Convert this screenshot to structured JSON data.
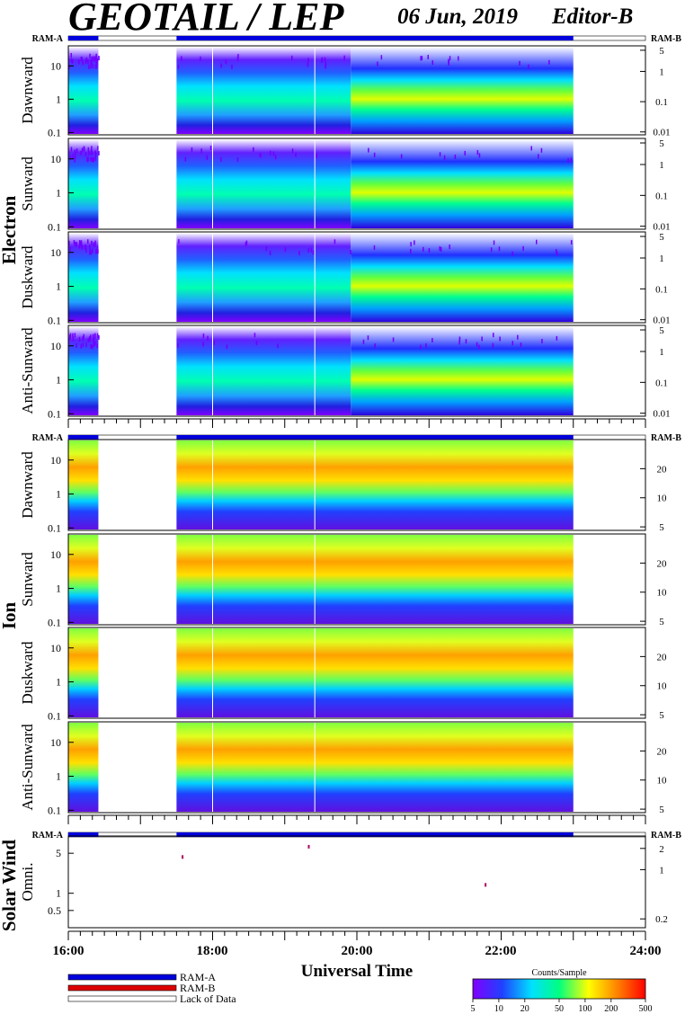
{
  "header": {
    "title": "GEOTAIL / LEP",
    "date": "06 Jun, 2019",
    "editor": "Editor-B"
  },
  "groups": [
    "Electron",
    "Ion",
    "Solar Wind"
  ],
  "ram_labels": {
    "a": "RAM-A",
    "b": "RAM-B"
  },
  "x_axis": {
    "label": "Universal Time",
    "ticks": [
      "16:00",
      "18:00",
      "20:00",
      "22:00",
      "24:00"
    ]
  },
  "legend": {
    "items": [
      {
        "label": "RAM-A",
        "color": "#0000dd"
      },
      {
        "label": "RAM-B",
        "color": "#dd0000"
      },
      {
        "label": "Lack of Data",
        "color": "#ffffff"
      }
    ]
  },
  "colorbar": {
    "title": "Counts/Sample",
    "ticks": [
      "5",
      "10",
      "20",
      "50",
      "100",
      "200",
      "500"
    ],
    "colors": [
      "#8000ff",
      "#2040ff",
      "#00e0ff",
      "#00ff80",
      "#ffff00",
      "#ff8000",
      "#ff0000"
    ]
  },
  "chart_data": [
    {
      "type": "heatmap",
      "group": "Electron",
      "ylabel": "Dawnward",
      "x_range": [
        "16:00",
        "24:00"
      ],
      "left_axis": {
        "scale": "log",
        "ticks": [
          "10",
          "1",
          "0.1"
        ]
      },
      "right_axis": {
        "scale": "log",
        "ticks": [
          "5",
          "1",
          "0.1",
          "0.01"
        ]
      },
      "data_gaps": [
        [
          "16:25",
          "17:30"
        ],
        [
          "23:00",
          "24:00"
        ]
      ]
    },
    {
      "type": "heatmap",
      "group": "Electron",
      "ylabel": "Sunward",
      "x_range": [
        "16:00",
        "24:00"
      ],
      "left_axis": {
        "scale": "log",
        "ticks": [
          "10",
          "1",
          "0.1"
        ]
      },
      "right_axis": {
        "scale": "log",
        "ticks": [
          "5",
          "1",
          "0.1",
          "0.01"
        ]
      },
      "data_gaps": [
        [
          "16:25",
          "17:30"
        ],
        [
          "23:00",
          "24:00"
        ]
      ]
    },
    {
      "type": "heatmap",
      "group": "Electron",
      "ylabel": "Duskward",
      "x_range": [
        "16:00",
        "24:00"
      ],
      "left_axis": {
        "scale": "log",
        "ticks": [
          "10",
          "1",
          "0.1"
        ]
      },
      "right_axis": {
        "scale": "log",
        "ticks": [
          "5",
          "1",
          "0.1",
          "0.01"
        ]
      },
      "data_gaps": [
        [
          "16:25",
          "17:30"
        ],
        [
          "23:00",
          "24:00"
        ]
      ]
    },
    {
      "type": "heatmap",
      "group": "Electron",
      "ylabel": "Anti-Sunward",
      "x_range": [
        "16:00",
        "24:00"
      ],
      "left_axis": {
        "scale": "log",
        "ticks": [
          "10",
          "1",
          "0.1"
        ]
      },
      "right_axis": {
        "scale": "log",
        "ticks": [
          "5",
          "1",
          "0.1",
          "0.01"
        ]
      },
      "data_gaps": [
        [
          "16:25",
          "17:30"
        ],
        [
          "23:00",
          "24:00"
        ]
      ]
    },
    {
      "type": "heatmap",
      "group": "Ion",
      "ylabel": "Dawnward",
      "x_range": [
        "16:00",
        "24:00"
      ],
      "left_axis": {
        "scale": "log",
        "ticks": [
          "10",
          "1",
          "0.1"
        ]
      },
      "right_axis": {
        "scale": "linear",
        "ticks": [
          "20",
          "10",
          "5"
        ]
      },
      "data_gaps": [
        [
          "16:25",
          "17:30"
        ],
        [
          "23:00",
          "24:00"
        ]
      ]
    },
    {
      "type": "heatmap",
      "group": "Ion",
      "ylabel": "Sunward",
      "x_range": [
        "16:00",
        "24:00"
      ],
      "left_axis": {
        "scale": "log",
        "ticks": [
          "10",
          "1",
          "0.1"
        ]
      },
      "right_axis": {
        "scale": "linear",
        "ticks": [
          "20",
          "10",
          "5"
        ]
      },
      "data_gaps": [
        [
          "16:25",
          "17:30"
        ],
        [
          "23:00",
          "24:00"
        ]
      ]
    },
    {
      "type": "heatmap",
      "group": "Ion",
      "ylabel": "Duskward",
      "x_range": [
        "16:00",
        "24:00"
      ],
      "left_axis": {
        "scale": "log",
        "ticks": [
          "10",
          "1",
          "0.1"
        ]
      },
      "right_axis": {
        "scale": "linear",
        "ticks": [
          "20",
          "10",
          "5"
        ]
      },
      "data_gaps": [
        [
          "16:25",
          "17:30"
        ],
        [
          "23:00",
          "24:00"
        ]
      ]
    },
    {
      "type": "heatmap",
      "group": "Ion",
      "ylabel": "Anti-Sunward",
      "x_range": [
        "16:00",
        "24:00"
      ],
      "left_axis": {
        "scale": "log",
        "ticks": [
          "10",
          "1",
          "0.1"
        ]
      },
      "right_axis": {
        "scale": "linear",
        "ticks": [
          "20",
          "10",
          "5"
        ]
      },
      "data_gaps": [
        [
          "16:25",
          "17:30"
        ],
        [
          "23:00",
          "24:00"
        ]
      ]
    },
    {
      "type": "scatter",
      "group": "Solar Wind",
      "ylabel": "Omni.",
      "x_range": [
        "16:00",
        "24:00"
      ],
      "left_axis": {
        "scale": "log",
        "ticks": [
          "5",
          "1",
          "0.5"
        ]
      },
      "right_axis": {
        "scale": "log",
        "ticks": [
          "2",
          "1",
          "0.2"
        ]
      },
      "points": [
        {
          "x": "17:35",
          "y": 4.3
        },
        {
          "x": "19:20",
          "y": 6.5
        },
        {
          "x": "21:47",
          "y": 1.4
        }
      ]
    }
  ]
}
